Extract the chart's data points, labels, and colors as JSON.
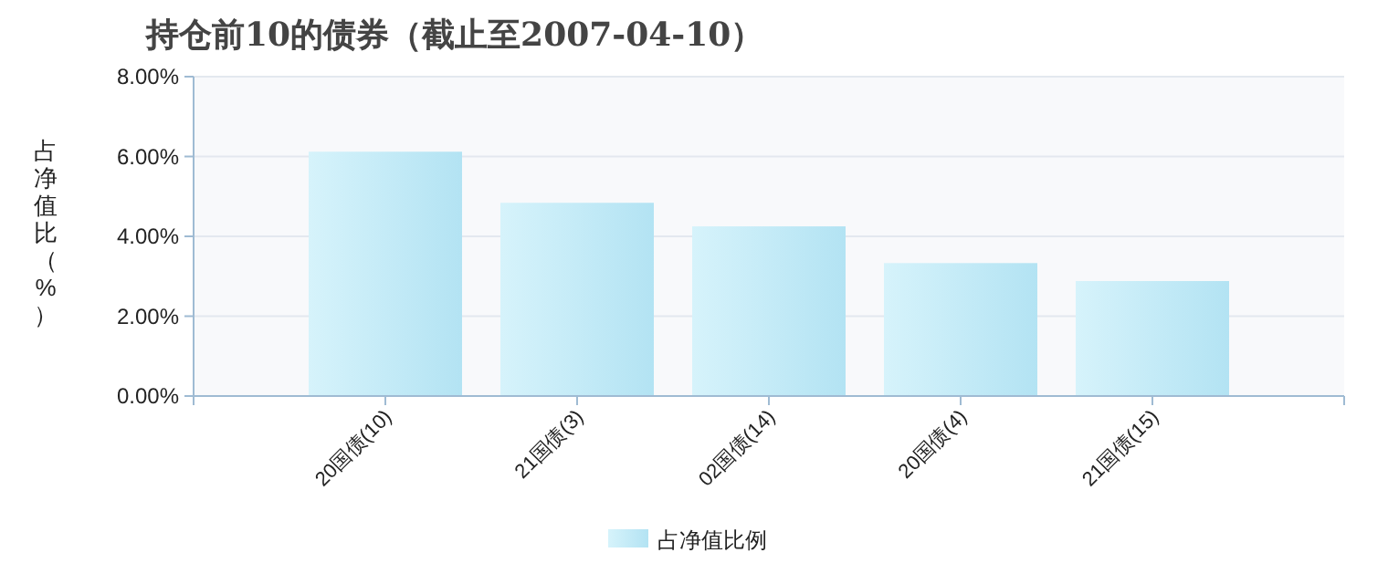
{
  "chart_data": {
    "type": "bar",
    "title": "持仓前10的债券（截止至2007-04-10）",
    "ylabel": "占净值比（%）",
    "categories": [
      "20国债(10)",
      "21国债(3)",
      "02国债(14)",
      "20国债(4)",
      "21国债(15)"
    ],
    "series": [
      {
        "name": "占净值比例",
        "color": "#b3e3f3",
        "values": [
          6.12,
          4.84,
          4.25,
          3.33,
          2.88
        ]
      }
    ],
    "ylim": [
      0,
      8
    ],
    "yticks": [
      {
        "value": 0,
        "label": "0.00%"
      },
      {
        "value": 2,
        "label": "2.00%"
      },
      {
        "value": 4,
        "label": "4.00%"
      },
      {
        "value": 6,
        "label": "6.00%"
      },
      {
        "value": 8,
        "label": "8.00%"
      }
    ],
    "grid": "y",
    "legend": "bottom"
  }
}
